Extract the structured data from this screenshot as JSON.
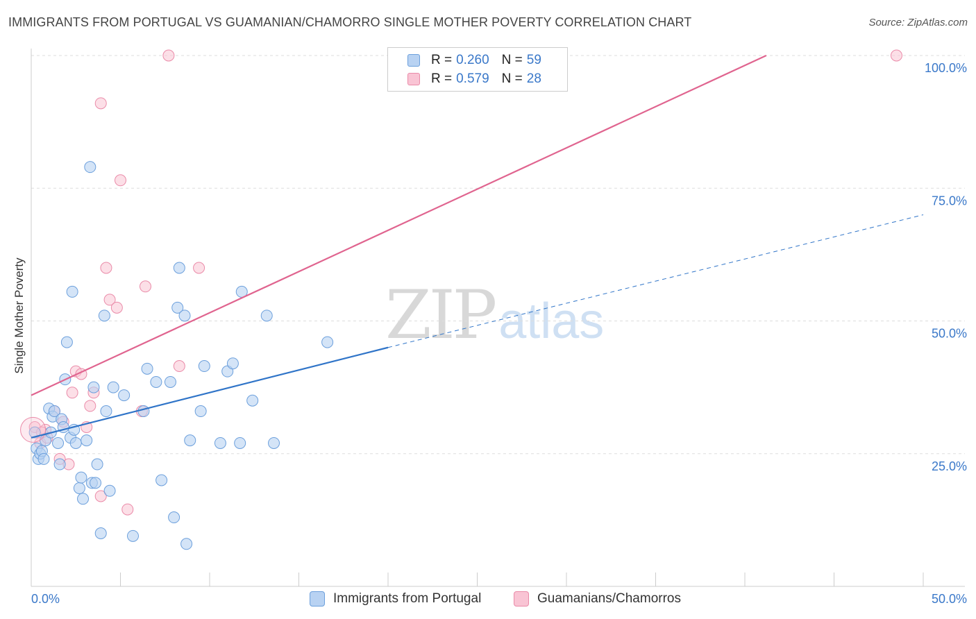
{
  "header": {
    "title": "IMMIGRANTS FROM PORTUGAL VS GUAMANIAN/CHAMORRO SINGLE MOTHER POVERTY CORRELATION CHART",
    "source": "Source: ZipAtlas.com"
  },
  "watermark": {
    "zip": "ZIP",
    "atlas": "atlas"
  },
  "legend": {
    "series1": {
      "r_label": "R =",
      "r_value": "0.260",
      "n_label": "N =",
      "n_value": "59"
    },
    "series2": {
      "r_label": "R =",
      "r_value": "0.579",
      "n_label": "N =",
      "n_value": "28"
    }
  },
  "bottom_legend": {
    "series1": "Immigrants from Portugal",
    "series2": "Guamanians/Chamorros"
  },
  "colors": {
    "blue_fill": "#b8d2f2",
    "blue_stroke": "#6b9fdc",
    "blue_line": "#2f74c8",
    "pink_fill": "#f9c4d4",
    "pink_stroke": "#ea8aa8",
    "pink_line": "#e0648f",
    "grid": "#dddddd",
    "tick_text": "#3a78c9"
  },
  "chart_data": {
    "type": "scatter",
    "title": "IMMIGRANTS FROM PORTUGAL VS GUAMANIAN/CHAMORRO SINGLE MOTHER POVERTY CORRELATION CHART",
    "xlabel": "",
    "ylabel": "Single Mother Poverty",
    "xlim": [
      0,
      50
    ],
    "ylim": [
      0,
      100
    ],
    "x_tick_labels": [
      "0.0%",
      "50.0%"
    ],
    "y_tick_labels": [
      "25.0%",
      "50.0%",
      "75.0%",
      "100.0%"
    ],
    "y_ticks": [
      25,
      50,
      75,
      100
    ],
    "x_minor_ticks": [
      0,
      5,
      10,
      15,
      20,
      25,
      30,
      35,
      40,
      45,
      50
    ],
    "series": [
      {
        "name": "Immigrants from Portugal",
        "R": 0.26,
        "N": 59,
        "trend": {
          "x0": 0,
          "y0": 28.0,
          "x1": 20,
          "y1": 45.0,
          "dashed_to_x": 50,
          "dashed_to_y": 70.0
        },
        "points": [
          [
            0.2,
            29.0
          ],
          [
            0.3,
            26.0
          ],
          [
            0.4,
            24.0
          ],
          [
            0.5,
            25.0
          ],
          [
            0.6,
            25.5
          ],
          [
            0.7,
            24.0
          ],
          [
            0.8,
            27.5
          ],
          [
            1.0,
            33.5
          ],
          [
            1.1,
            29.0
          ],
          [
            1.2,
            32.0
          ],
          [
            1.3,
            33.0
          ],
          [
            1.5,
            27.0
          ],
          [
            1.6,
            23.0
          ],
          [
            1.7,
            31.5
          ],
          [
            1.8,
            30.0
          ],
          [
            1.9,
            39.0
          ],
          [
            2.0,
            46.0
          ],
          [
            2.2,
            28.0
          ],
          [
            2.3,
            55.5
          ],
          [
            2.4,
            29.5
          ],
          [
            2.5,
            27.0
          ],
          [
            2.7,
            18.5
          ],
          [
            2.8,
            20.5
          ],
          [
            2.9,
            16.5
          ],
          [
            3.0,
            27.5
          ],
          [
            3.2,
            79.0
          ],
          [
            3.3,
            19.5
          ],
          [
            3.5,
            37.5
          ],
          [
            3.6,
            19.5
          ],
          [
            3.7,
            23.0
          ],
          [
            3.9,
            10.0
          ],
          [
            4.1,
            51.0
          ],
          [
            4.2,
            33.0
          ],
          [
            4.4,
            18.0
          ],
          [
            4.6,
            37.5
          ],
          [
            5.2,
            36.0
          ],
          [
            5.7,
            9.5
          ],
          [
            6.3,
            33.0
          ],
          [
            6.5,
            33.0
          ],
          [
            6.5,
            33.0
          ],
          [
            6.5,
            33.0
          ],
          [
            6.5,
            33.0
          ],
          [
            6.5,
            33.0
          ],
          [
            6.5,
            33.0
          ],
          [
            6.5,
            33.0
          ],
          [
            6.5,
            33.0
          ],
          [
            6.5,
            33.0
          ],
          [
            6.5,
            33.0
          ],
          [
            6.5,
            33.0
          ],
          [
            6.5,
            33.0
          ],
          [
            6.5,
            33.0
          ],
          [
            6.5,
            33.0
          ],
          [
            6.5,
            33.0
          ],
          [
            6.5,
            33.0
          ],
          [
            6.5,
            33.0
          ],
          [
            6.5,
            33.0
          ],
          [
            6.5,
            33.0
          ],
          [
            6.5,
            33.0
          ],
          [
            6.5,
            33.0
          ]
        ]
      }
    ]
  }
}
